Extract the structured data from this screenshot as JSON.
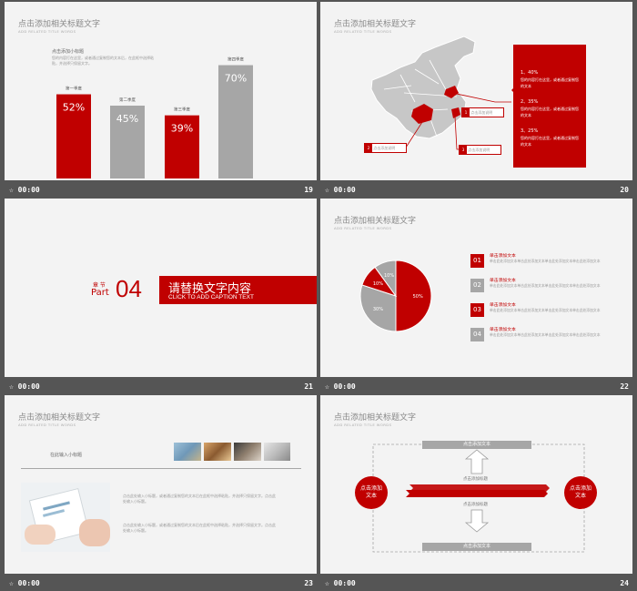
{
  "slides": [
    {
      "number": "19",
      "time": "00:00",
      "title": "点击添加相关标题文字",
      "subtitle": "ADD RELATED TITLE WORDS",
      "heading": "点击添加小标题",
      "body": "您的内容打在这里，或者通过复制您的文本后，在此框中选择粘贴，并选择只保留文字。",
      "chart_data": {
        "type": "bar",
        "categories": [
          "第一季度",
          "第二季度",
          "第三季度",
          "第四季度"
        ],
        "values": [
          52,
          45,
          39,
          70
        ],
        "value_labels": [
          "52%",
          "45%",
          "39%",
          "70%"
        ],
        "colors": [
          "#c00000",
          "#a6a6a6",
          "#c00000",
          "#a6a6a6"
        ]
      }
    },
    {
      "number": "20",
      "time": "00:00",
      "title": "点击添加相关标题文字",
      "subtitle": "ADD RELATED TITLE WORDS",
      "callouts": [
        "1",
        "2",
        "3"
      ],
      "callout_label": "点击添加说明",
      "stats": [
        {
          "value": "1、40%",
          "text": "您的内容打在这里，或者通过复制您的文本"
        },
        {
          "value": "2、35%",
          "text": "您的内容打在这里，或者通过复制您的文本"
        },
        {
          "value": "3、25%",
          "text": "您的内容打在这里，或者通过复制您的文本"
        }
      ]
    },
    {
      "number": "21",
      "time": "00:00",
      "chapter_label": "章 节",
      "part_label": "Part",
      "part_number": "04",
      "main_text": "请替换文字内容",
      "caption": "CLICK TO ADD CAPTION TEXT"
    },
    {
      "number": "22",
      "time": "00:00",
      "title": "点击添加相关标题文字",
      "subtitle": "ADD RELATED TITLE WORDS",
      "chart_data": {
        "type": "pie",
        "categories": [
          "50%",
          "30%",
          "10%",
          "10%"
        ],
        "values": [
          50,
          30,
          10,
          10
        ],
        "colors": [
          "#c00000",
          "#a6a6a6",
          "#c00000",
          "#a6a6a6"
        ]
      },
      "items": [
        {
          "num": "01",
          "heading": "单击添加文本",
          "text": "单击此处添加文本单击此处添加文本单击此处添加文本单击此处添加文本"
        },
        {
          "num": "02",
          "heading": "单击添加文本",
          "text": "单击此处添加文本单击此处添加文本单击此处添加文本单击此处添加文本"
        },
        {
          "num": "03",
          "heading": "单击添加文本",
          "text": "单击此处添加文本单击此处添加文本单击此处添加文本单击此处添加文本"
        },
        {
          "num": "04",
          "heading": "单击添加文本",
          "text": "单击此处添加文本单击此处添加文本单击此处添加文本单击此处添加文本"
        }
      ]
    },
    {
      "number": "23",
      "time": "00:00",
      "title": "点击添加相关标题文字",
      "subtitle": "ADD RELATED TITLE WORDS",
      "section_label": "在此输入小标题",
      "para1": "点击此处输入小标题，或者通过复制您的文本后在此框中选择粘贴，并选择只保留文字。点击此处输入小标题。",
      "para2": "点击此处输入小标题，或者通过复制您的文本后在此框中选择粘贴，并选择只保留文字。点击此处输入小标题。"
    },
    {
      "number": "24",
      "time": "00:00",
      "title": "点击添加相关标题文字",
      "subtitle": "ADD RELATED TITLE WORDS",
      "left_circle": "点击添加文本",
      "right_circle": "点击添加文本",
      "top_bar": "点击添加文本",
      "bottom_bar": "点击添加文本",
      "up_label": "点击添加标题",
      "down_label": "点击添加标题"
    }
  ],
  "colors": {
    "accent": "#c00000",
    "gray": "#a6a6a6",
    "background": "#555555",
    "slide": "#f3f3f3"
  }
}
